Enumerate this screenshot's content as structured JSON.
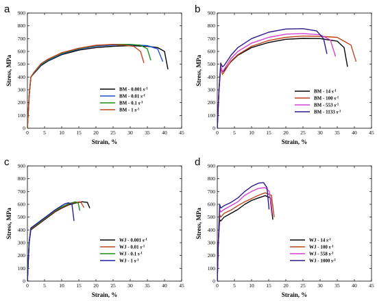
{
  "chart_data": [
    {
      "panel_label": "a",
      "type": "line",
      "xlabel": "Strain, %",
      "ylabel": "Stress, MPa",
      "xlim": [
        0,
        45
      ],
      "ylim": [
        0,
        900
      ],
      "xticks": [
        "0",
        "5",
        "10",
        "15",
        "20",
        "25",
        "30",
        "35",
        "40",
        "45"
      ],
      "yticks": [
        "0",
        "100",
        "200",
        "300",
        "400",
        "500",
        "600",
        "700",
        "800",
        "900"
      ],
      "legend_position": "right",
      "series": [
        {
          "name": "BM - 0.001 s",
          "name_sup": "-1",
          "color": "#000000",
          "x": [
            0,
            0.5,
            1,
            2,
            4,
            6,
            10,
            15,
            20,
            25,
            30,
            35,
            38,
            40,
            41
          ],
          "y": [
            0,
            250,
            400,
            430,
            490,
            525,
            575,
            610,
            630,
            640,
            645,
            640,
            630,
            600,
            460
          ]
        },
        {
          "name": "BM - 0.01 s",
          "name_sup": "-1",
          "color": "#1f4fd1",
          "x": [
            0,
            0.5,
            1,
            2,
            4,
            6,
            10,
            15,
            20,
            25,
            30,
            35,
            38,
            39.5
          ],
          "y": [
            0,
            250,
            400,
            435,
            495,
            530,
            580,
            618,
            640,
            650,
            652,
            645,
            620,
            520
          ]
        },
        {
          "name": "BM - 0.1 s",
          "name_sup": "-1",
          "color": "#1a8a1a",
          "x": [
            0,
            0.5,
            1,
            2,
            4,
            6,
            10,
            15,
            20,
            25,
            30,
            33,
            35,
            36
          ],
          "y": [
            0,
            250,
            400,
            437,
            500,
            535,
            585,
            622,
            645,
            655,
            655,
            648,
            620,
            530
          ]
        },
        {
          "name": "BM - 1 s",
          "name_sup": "-1",
          "color": "#c0421a",
          "x": [
            0,
            0.5,
            1,
            2,
            4,
            6,
            10,
            15,
            20,
            25,
            28,
            31,
            33,
            34
          ],
          "y": [
            0,
            250,
            400,
            440,
            505,
            540,
            590,
            625,
            648,
            655,
            650,
            640,
            600,
            510
          ]
        }
      ]
    },
    {
      "panel_label": "b",
      "type": "line",
      "xlabel": "Strain, %",
      "ylabel": "Stress, MPa",
      "xlim": [
        0,
        45
      ],
      "ylim": [
        0,
        900
      ],
      "xticks": [
        "0",
        "5",
        "10",
        "15",
        "20",
        "25",
        "30",
        "35",
        "40",
        "45"
      ],
      "yticks": [
        "0",
        "100",
        "200",
        "300",
        "400",
        "500",
        "600",
        "700",
        "800",
        "900"
      ],
      "legend_position": "right",
      "series": [
        {
          "name": "BM - 14 s",
          "name_sup": "-1",
          "color": "#000000",
          "x": [
            0,
            0.5,
            1,
            1.5,
            2,
            4,
            6,
            10,
            15,
            20,
            25,
            30,
            35,
            37,
            38
          ],
          "y": [
            0,
            300,
            480,
            440,
            450,
            520,
            570,
            630,
            670,
            695,
            702,
            700,
            680,
            630,
            480
          ]
        },
        {
          "name": "BM - 100 s",
          "name_sup": "-1",
          "color": "#c0421a",
          "x": [
            0,
            0.5,
            1,
            1.5,
            2,
            4,
            6,
            10,
            15,
            20,
            25,
            30,
            35,
            39,
            40.5
          ],
          "y": [
            0,
            300,
            480,
            420,
            440,
            525,
            575,
            640,
            685,
            710,
            720,
            718,
            710,
            650,
            520
          ]
        },
        {
          "name": "BM - 553 s",
          "name_sup": "-1",
          "color": "#d23fd2",
          "x": [
            0,
            0.5,
            1,
            1.5,
            2,
            4,
            6,
            10,
            15,
            20,
            25,
            30,
            33,
            34.5
          ],
          "y": [
            0,
            300,
            490,
            440,
            460,
            545,
            600,
            665,
            710,
            735,
            740,
            730,
            690,
            560
          ]
        },
        {
          "name": "BM - 1133 s",
          "name_sup": "-1",
          "color": "#2a1a8a",
          "x": [
            0,
            0.5,
            1,
            1.5,
            2,
            4,
            6,
            10,
            15,
            20,
            25,
            29,
            31,
            32
          ],
          "y": [
            0,
            300,
            510,
            480,
            490,
            570,
            630,
            700,
            750,
            775,
            778,
            760,
            700,
            580
          ]
        }
      ]
    },
    {
      "panel_label": "c",
      "type": "line",
      "xlabel": "Strain, %",
      "ylabel": "Stress, MPa",
      "xlim": [
        0,
        45
      ],
      "ylim": [
        0,
        900
      ],
      "xticks": [
        "0",
        "5",
        "10",
        "15",
        "20",
        "25",
        "30",
        "35",
        "40",
        "45"
      ],
      "yticks": [
        "0",
        "100",
        "200",
        "300",
        "400",
        "500",
        "600",
        "700",
        "800",
        "900"
      ],
      "legend_position": "lower-right",
      "series": [
        {
          "name": "WJ - 0.001 s",
          "name_sup": "-1",
          "color": "#000000",
          "x": [
            0,
            0.5,
            1,
            2,
            4,
            6,
            8,
            10,
            12,
            14,
            16,
            17.5,
            18.2
          ],
          "y": [
            0,
            300,
            400,
            420,
            460,
            500,
            540,
            570,
            595,
            610,
            620,
            615,
            570
          ]
        },
        {
          "name": "WJ - 0.01 s",
          "name_sup": "-1",
          "color": "#c0421a",
          "x": [
            0,
            0.5,
            1,
            2,
            4,
            6,
            8,
            10,
            12,
            14,
            15.5,
            16.5
          ],
          "y": [
            0,
            300,
            405,
            425,
            465,
            505,
            545,
            575,
            600,
            615,
            620,
            575
          ]
        },
        {
          "name": "WJ - 0.1 s",
          "name_sup": "-1",
          "color": "#1a8a1a",
          "x": [
            0,
            0.5,
            1,
            2,
            4,
            6,
            8,
            10,
            12,
            14,
            14.8,
            15.3
          ],
          "y": [
            0,
            300,
            410,
            430,
            470,
            510,
            550,
            580,
            605,
            620,
            610,
            550
          ]
        },
        {
          "name": "WJ - 1 s",
          "name_sup": "-1",
          "color": "#1f1fa0",
          "x": [
            0,
            0.5,
            1,
            2,
            4,
            6,
            8,
            10,
            11,
            12,
            13,
            13.6
          ],
          "y": [
            0,
            300,
            415,
            435,
            475,
            515,
            555,
            590,
            605,
            612,
            600,
            470
          ]
        }
      ]
    },
    {
      "panel_label": "d",
      "type": "line",
      "xlabel": "Strain, %",
      "ylabel": "Stress, MPa",
      "xlim": [
        0,
        45
      ],
      "ylim": [
        0,
        900
      ],
      "xticks": [
        "0",
        "5",
        "10",
        "15",
        "20",
        "25",
        "30",
        "35",
        "40",
        "45"
      ],
      "yticks": [
        "0",
        "100",
        "200",
        "300",
        "400",
        "500",
        "600",
        "700",
        "800",
        "900"
      ],
      "legend_position": "lower-right",
      "series": [
        {
          "name": "WJ - 14 s",
          "name_sup": "-1",
          "color": "#000000",
          "x": [
            0,
            0.3,
            0.7,
            1,
            2,
            4,
            6,
            8,
            10,
            12,
            14,
            15.5,
            16.2
          ],
          "y": [
            0,
            300,
            480,
            470,
            500,
            530,
            560,
            600,
            630,
            650,
            668,
            650,
            480
          ]
        },
        {
          "name": "WJ - 100 s",
          "name_sup": "-1",
          "color": "#c0421a",
          "x": [
            0,
            0.3,
            0.7,
            1,
            2,
            4,
            6,
            8,
            10,
            12,
            14,
            15.8,
            16.6
          ],
          "y": [
            0,
            300,
            520,
            500,
            530,
            555,
            590,
            620,
            645,
            670,
            690,
            670,
            500
          ]
        },
        {
          "name": "WJ - 558 s",
          "name_sup": "-1",
          "color": "#d23fd2",
          "x": [
            0,
            0.3,
            0.7,
            1,
            2,
            4,
            6,
            8,
            10,
            12,
            14,
            15.2,
            15.9
          ],
          "y": [
            0,
            300,
            560,
            540,
            560,
            590,
            620,
            670,
            700,
            725,
            730,
            700,
            520
          ]
        },
        {
          "name": "WJ - 1000 s",
          "name_sup": "-1",
          "color": "#2a1a8a",
          "x": [
            0,
            0.3,
            0.7,
            1,
            2,
            4,
            6,
            8,
            10,
            12,
            13.5,
            14.5,
            15.1
          ],
          "y": [
            0,
            300,
            600,
            570,
            590,
            615,
            650,
            700,
            740,
            765,
            770,
            730,
            560
          ]
        }
      ]
    }
  ]
}
